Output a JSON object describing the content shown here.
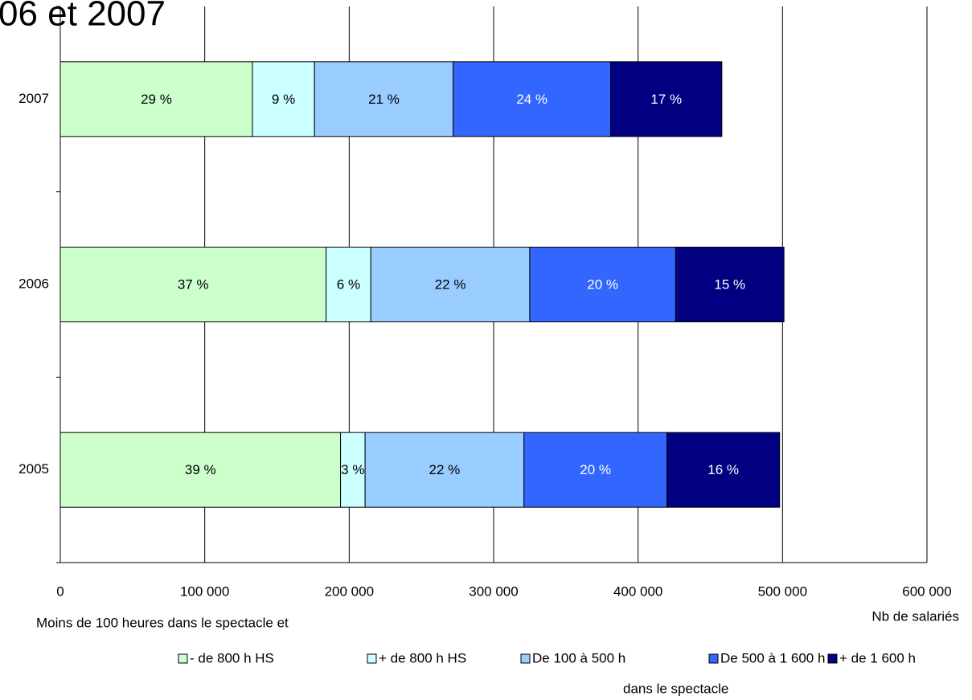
{
  "chart_data": {
    "type": "stacked_barh",
    "title": "06 et 2007",
    "x_label": "Nb de salariés",
    "legend_title": "Moins de 100 heures dans le spectacle et",
    "legend_note": "dans le spectacle",
    "categories": [
      "2005",
      "2006",
      "2007"
    ],
    "series": [
      {
        "name": "- de 800 h HS",
        "color": "#ccffcc",
        "values": [
          194000,
          184000,
          133000
        ],
        "shares": [
          {
            "value": 39,
            "label": "39 %"
          },
          {
            "value": 37,
            "label": "37 %"
          },
          {
            "value": 29,
            "label": "29 %"
          }
        ]
      },
      {
        "name": "+ de 800 h HS",
        "color": "#ccffff",
        "values": [
          17000,
          31000,
          43000
        ],
        "shares": [
          {
            "value": 3,
            "label": "3 %"
          },
          {
            "value": 6,
            "label": "6 %"
          },
          {
            "value": 9,
            "label": "9 %"
          }
        ]
      },
      {
        "name": "De 100 à 500 h",
        "color": "#99ccff",
        "values": [
          110000,
          110000,
          96000
        ],
        "shares": [
          {
            "value": 22,
            "label": "22 %"
          },
          {
            "value": 22,
            "label": "22 %"
          },
          {
            "value": 21,
            "label": "21 %"
          }
        ]
      },
      {
        "name": "De 500 à 1 600 h",
        "color": "#3366ff",
        "values": [
          99000,
          101000,
          109000
        ],
        "shares": [
          {
            "value": 20,
            "label": "20 %"
          },
          {
            "value": 20,
            "label": "20 %"
          },
          {
            "value": 24,
            "label": "24 %"
          }
        ]
      },
      {
        "name": "+ de 1 600 h",
        "color": "#000080",
        "values": [
          78000,
          75000,
          77000
        ],
        "shares": [
          {
            "value": 16,
            "label": "16 %"
          },
          {
            "value": 15,
            "label": "15 %"
          },
          {
            "value": 17,
            "label": "17 %"
          }
        ]
      }
    ],
    "xlim": [
      0,
      600000
    ],
    "xticks": [
      0,
      {
        "value": 100000,
        "label": "100 000"
      },
      {
        "value": 200000,
        "label": "200 000"
      },
      {
        "value": 300000,
        "label": "300 000"
      },
      {
        "value": 400000,
        "label": "400 000"
      },
      {
        "value": 500000,
        "label": "500 000"
      },
      {
        "value": 600000,
        "label": "600 000"
      }
    ],
    "grid": true
  }
}
